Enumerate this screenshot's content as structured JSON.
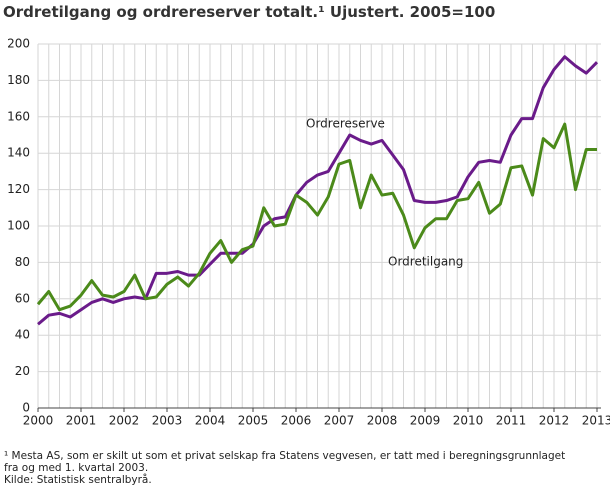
{
  "chart_data": {
    "type": "line",
    "title": "Ordretilgang og ordrereserver totalt.¹ Ujustert. 2005=100",
    "x": [
      2000,
      2000.25,
      2000.5,
      2000.75,
      2001,
      2001.25,
      2001.5,
      2001.75,
      2002,
      2002.25,
      2002.5,
      2002.75,
      2003,
      2003.25,
      2003.5,
      2003.75,
      2004,
      2004.25,
      2004.5,
      2004.75,
      2005,
      2005.25,
      2005.5,
      2005.75,
      2006,
      2006.25,
      2006.5,
      2006.75,
      2007,
      2007.25,
      2007.5,
      2007.75,
      2008,
      2008.25,
      2008.5,
      2008.75,
      2009,
      2009.25,
      2009.5,
      2009.75,
      2010,
      2010.25,
      2010.5,
      2010.75,
      2011,
      2011.25,
      2011.5,
      2011.75,
      2012,
      2012.25,
      2012.5,
      2012.75,
      2013
    ],
    "series": [
      {
        "name": "Ordrereserve",
        "color": "#6a1b8a",
        "values": [
          46,
          51,
          52,
          50,
          54,
          58,
          60,
          58,
          60,
          61,
          60,
          74,
          74,
          75,
          73,
          73,
          79,
          85,
          85,
          85,
          90,
          100,
          104,
          105,
          117,
          124,
          128,
          130,
          140,
          150,
          147,
          145,
          147,
          139,
          131,
          114,
          113,
          113,
          114,
          116,
          127,
          135,
          136,
          135,
          150,
          159,
          159,
          176,
          186,
          193,
          188,
          184,
          190
        ]
      },
      {
        "name": "Ordretilgang",
        "color": "#4b8a1a",
        "values": [
          57,
          64,
          54,
          56,
          62,
          70,
          62,
          61,
          64,
          73,
          60,
          61,
          68,
          72,
          67,
          74,
          85,
          92,
          80,
          87,
          89,
          110,
          100,
          101,
          117,
          113,
          106,
          116,
          134,
          136,
          110,
          128,
          117,
          118,
          106,
          88,
          99,
          104,
          104,
          114,
          115,
          124,
          107,
          112,
          132,
          133,
          117,
          148,
          143,
          156,
          120,
          142,
          142
        ]
      }
    ],
    "xlim": [
      2000,
      2013
    ],
    "xticks": [
      2000,
      2001,
      2002,
      2003,
      2004,
      2005,
      2006,
      2007,
      2008,
      2009,
      2010,
      2011,
      2012,
      2013
    ],
    "ylim": [
      0,
      200
    ],
    "yticks": [
      0,
      20,
      40,
      60,
      80,
      100,
      120,
      140,
      160,
      180,
      200
    ],
    "grid": true
  },
  "footnotes": [
    "¹ Mesta AS, som er skilt ut som et privat selskap fra Statens vegvesen, er tatt med i beregningsgrunnlaget fra og med 1. kvartal 2003.",
    "Kilde: Statistisk sentralbyrå."
  ]
}
